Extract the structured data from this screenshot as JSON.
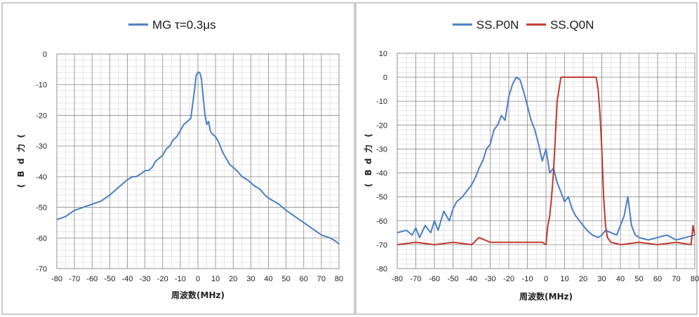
{
  "chart_data": [
    {
      "type": "line",
      "xlabel": "周波数(MHz)",
      "ylabel_chars": [
        "(",
        "B",
        "d",
        "力",
        "("
      ],
      "xlim": [
        -80,
        80
      ],
      "ylim": [
        -70,
        0
      ],
      "xticks": [
        -80,
        -70,
        -60,
        -50,
        -40,
        -30,
        -20,
        -10,
        0,
        10,
        20,
        30,
        40,
        50,
        60,
        70,
        80
      ],
      "yticks": [
        0,
        -10,
        -20,
        -30,
        -40,
        -50,
        -60,
        -70
      ],
      "grid": true,
      "legend_position": "top-center",
      "series": [
        {
          "name": "MG τ=0.3μs",
          "color": "#4A7FC1",
          "x": [
            -80,
            -75,
            -70,
            -65,
            -60,
            -55,
            -50,
            -48,
            -46,
            -44,
            -42,
            -40,
            -37,
            -35,
            -32,
            -30,
            -28,
            -26,
            -24,
            -22,
            -20,
            -18,
            -16,
            -14,
            -12,
            -10,
            -8,
            -6,
            -4,
            -2,
            -1,
            0,
            1,
            2,
            3,
            4,
            5,
            6,
            7,
            8,
            10,
            12,
            14,
            16,
            18,
            20,
            22,
            25,
            28,
            30,
            32,
            35,
            38,
            40,
            43,
            46,
            50,
            55,
            60,
            65,
            70,
            75,
            78,
            80
          ],
          "y": [
            -54,
            -53,
            -51,
            -50,
            -49,
            -48,
            -46,
            -45,
            -44,
            -43,
            -42,
            -41,
            -40,
            -40,
            -39,
            -38,
            -38,
            -37,
            -35,
            -34,
            -33,
            -31,
            -30,
            -28,
            -27,
            -25,
            -23,
            -22,
            -21,
            -12,
            -7,
            -6,
            -6,
            -8,
            -14,
            -20,
            -23,
            -22,
            -25,
            -26,
            -27,
            -29,
            -32,
            -34,
            -36,
            -37,
            -38,
            -40,
            -41,
            -42,
            -43,
            -44,
            -46,
            -47,
            -48,
            -49,
            -51,
            -53,
            -55,
            -57,
            -59,
            -60,
            -61,
            -62
          ]
        }
      ]
    },
    {
      "type": "line",
      "xlabel": "周波数(MHz)",
      "ylabel_chars": [
        "(",
        "B",
        "d",
        "力",
        "("
      ],
      "xlim": [
        -80,
        80
      ],
      "ylim": [
        -80,
        10
      ],
      "xticks": [
        -80,
        -70,
        -60,
        -50,
        -40,
        -30,
        -20,
        -10,
        0,
        10,
        20,
        30,
        40,
        50,
        60,
        70,
        80
      ],
      "yticks": [
        10,
        0,
        -10,
        -20,
        -30,
        -40,
        -50,
        -60,
        -70,
        -80
      ],
      "grid": true,
      "legend_position": "top-center",
      "series": [
        {
          "name": "SS.P0N",
          "color": "#4A7FC1",
          "x": [
            -80,
            -75,
            -72,
            -70,
            -68,
            -65,
            -62,
            -60,
            -58,
            -55,
            -52,
            -50,
            -48,
            -45,
            -42,
            -40,
            -38,
            -36,
            -34,
            -32,
            -30,
            -28,
            -26,
            -24,
            -22,
            -20,
            -18,
            -16,
            -14,
            -12,
            -10,
            -8,
            -6,
            -4,
            -2,
            0,
            2,
            4,
            6,
            8,
            10,
            12,
            14,
            16,
            18,
            20,
            22,
            25,
            28,
            30,
            32,
            35,
            38,
            40,
            42,
            44,
            46,
            48,
            50,
            55,
            60,
            65,
            70,
            75,
            80
          ],
          "y": [
            -65,
            -64,
            -66,
            -63,
            -67,
            -62,
            -65,
            -60,
            -64,
            -56,
            -60,
            -55,
            -52,
            -50,
            -47,
            -45,
            -42,
            -38,
            -35,
            -30,
            -28,
            -22,
            -20,
            -16,
            -18,
            -8,
            -3,
            0,
            -1,
            -6,
            -12,
            -18,
            -22,
            -28,
            -35,
            -30,
            -40,
            -38,
            -44,
            -48,
            -52,
            -50,
            -55,
            -58,
            -60,
            -62,
            -64,
            -66,
            -67,
            -66,
            -64,
            -65,
            -66,
            -62,
            -58,
            -50,
            -62,
            -66,
            -67,
            -68,
            -67,
            -66,
            -68,
            -67,
            -66
          ]
        },
        {
          "name": "SS.Q0N",
          "color": "#C0392B",
          "x": [
            -80,
            -70,
            -60,
            -50,
            -40,
            -36,
            -30,
            -20,
            -10,
            -2,
            0,
            1,
            2,
            3,
            4,
            5,
            6,
            8,
            10,
            15,
            20,
            25,
            26,
            27,
            28,
            29,
            30,
            31,
            32,
            33,
            35,
            40,
            50,
            60,
            70,
            78,
            79,
            80
          ],
          "y": [
            -70,
            -69,
            -70,
            -69,
            -70,
            -67,
            -69,
            -69,
            -69,
            -69,
            -70,
            -62,
            -58,
            -50,
            -40,
            -25,
            -10,
            0,
            0,
            0,
            0,
            0,
            0,
            0,
            -5,
            -15,
            -30,
            -50,
            -62,
            -67,
            -69,
            -70,
            -69,
            -70,
            -69,
            -70,
            -62,
            -66
          ]
        }
      ]
    }
  ]
}
